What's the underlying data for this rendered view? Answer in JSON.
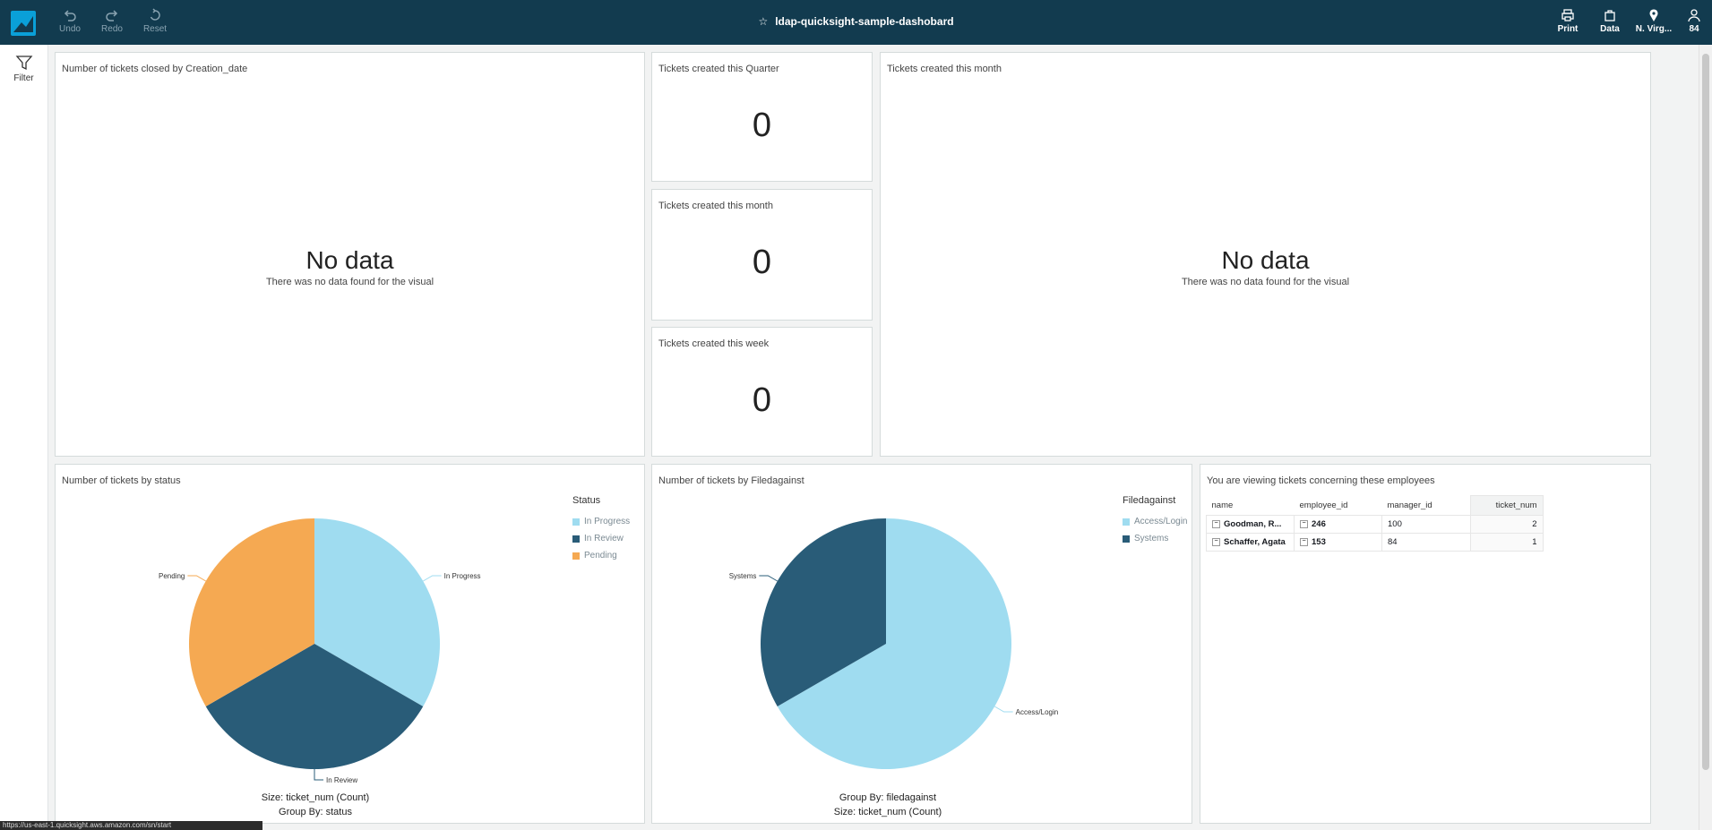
{
  "toolbar": {
    "undo_label": "Undo",
    "redo_label": "Redo",
    "reset_label": "Reset",
    "title": "ldap-quicksight-sample-dashobard",
    "print_label": "Print",
    "data_label": "Data",
    "region_label": "N. Virg...",
    "user_label": "84"
  },
  "leftrail": {
    "filter_label": "Filter"
  },
  "panels": {
    "closed_by_date": {
      "title": "Number of tickets closed by Creation_date",
      "nodata_title": "No data",
      "nodata_sub": "There was no data found for the visual"
    },
    "quarter": {
      "title": "Tickets created this Quarter",
      "value": "0"
    },
    "month_kpi": {
      "title": "Tickets created this month",
      "value": "0"
    },
    "week": {
      "title": "Tickets created this week",
      "value": "0"
    },
    "month_chart": {
      "title": "Tickets created this month",
      "nodata_title": "No data",
      "nodata_sub": "There was no data found for the visual"
    },
    "status_pie": {
      "title": "Number of tickets by status",
      "legend_title": "Status",
      "legend": [
        "In Progress",
        "In Review",
        "Pending"
      ],
      "labels": {
        "in_progress": "In Progress",
        "in_review": "In Review",
        "pending": "Pending"
      },
      "footer1": "Size: ticket_num (Count)",
      "footer2": "Group By: status"
    },
    "filed_pie": {
      "title": "Number of tickets by Filedagainst",
      "legend_title": "Filedagainst",
      "legend": [
        "Access/Login",
        "Systems"
      ],
      "labels": {
        "access": "Access/Login",
        "systems": "Systems"
      },
      "footer1": "Group By: filedagainst",
      "footer2": "Size: ticket_num (Count)"
    },
    "employees": {
      "title": "You are viewing tickets concerning these employees",
      "columns": [
        "name",
        "employee_id",
        "manager_id",
        "ticket_num"
      ],
      "rows": [
        [
          "Goodman, R...",
          "246",
          "100",
          "2"
        ],
        [
          "Schaffer, Agata",
          "153",
          "84",
          "1"
        ]
      ]
    }
  },
  "chart_data": [
    {
      "type": "pie",
      "title": "Number of tickets by status",
      "categories": [
        "In Progress",
        "In Review",
        "Pending"
      ],
      "values": [
        1,
        1,
        1
      ],
      "colors": [
        "#9fdcf0",
        "#295c78",
        "#f5a952"
      ]
    },
    {
      "type": "pie",
      "title": "Number of tickets by Filedagainst",
      "categories": [
        "Access/Login",
        "Systems"
      ],
      "values": [
        2,
        1
      ],
      "colors": [
        "#9fdcf0",
        "#295c78"
      ]
    }
  ],
  "colors": {
    "topbar": "#123b4f",
    "accent": "#0aa0d8",
    "light_blue": "#9fdcf0",
    "dark_blue": "#295c78",
    "orange": "#f5a952"
  },
  "statusbar": {
    "text": "https://us-east-1.quicksight.aws.amazon.com/sn/start"
  }
}
